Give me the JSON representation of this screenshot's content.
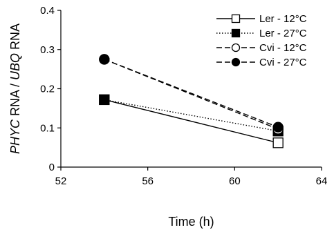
{
  "chart_data": {
    "type": "line",
    "xlabel": "Time (h)",
    "ylabel": {
      "gene1": "PHYC",
      "rest1": " RNA / ",
      "gene2": "UBQ",
      "rest2": " RNA"
    },
    "xlim": [
      52,
      64
    ],
    "ylim": [
      0,
      0.4
    ],
    "xticks": [
      "52",
      "56",
      "60",
      "64"
    ],
    "yticks": [
      "0",
      "0.1",
      "0.2",
      "0.3",
      "0.4"
    ],
    "grid": false,
    "legend_position": "top-right",
    "series": [
      {
        "name": "Ler - 12°C",
        "line": "solid",
        "marker": "square-open",
        "color": "#000000",
        "x": [
          54,
          62
        ],
        "y": [
          0.172,
          0.062
        ]
      },
      {
        "name": "Ler - 27°C",
        "line": "dotted",
        "marker": "square-filled",
        "color": "#000000",
        "x": [
          54,
          62
        ],
        "y": [
          0.172,
          0.092
        ]
      },
      {
        "name": "Cvi - 12°C",
        "line": "dashed",
        "marker": "circle-open",
        "color": "#000000",
        "x": [
          54,
          62
        ],
        "y": [
          0.275,
          0.097
        ]
      },
      {
        "name": "Cvi - 27°C",
        "line": "dashed",
        "marker": "circle-filled",
        "color": "#000000",
        "x": [
          54,
          62
        ],
        "y": [
          0.275,
          0.102
        ]
      }
    ]
  }
}
